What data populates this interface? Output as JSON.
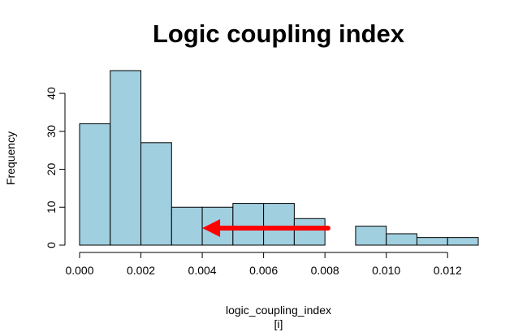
{
  "chart_data": {
    "type": "bar",
    "subtype": "histogram",
    "title": "Logic coupling index",
    "xlabel": "logic_coupling_index",
    "xlabel_sub": "[i]",
    "ylabel": "Frequency",
    "bin_edges": [
      0.0,
      0.001,
      0.002,
      0.003,
      0.004,
      0.005,
      0.006,
      0.007,
      0.008,
      0.009,
      0.01,
      0.011,
      0.012,
      0.013
    ],
    "counts": [
      32,
      46,
      27,
      10,
      10,
      11,
      11,
      7,
      0,
      5,
      3,
      2,
      2
    ],
    "xlim": [
      0.0,
      0.013
    ],
    "ylim": [
      0,
      46
    ],
    "x_ticks": [
      0.0,
      0.002,
      0.004,
      0.006,
      0.008,
      0.01,
      0.012
    ],
    "x_tick_labels": [
      "0.000",
      "0.002",
      "0.004",
      "0.006",
      "0.008",
      "0.010",
      "0.012"
    ],
    "y_ticks": [
      0,
      10,
      20,
      30,
      40
    ],
    "y_tick_labels": [
      "0",
      "10",
      "20",
      "30",
      "40"
    ],
    "grid": false,
    "bar_color": "#a0cfe0",
    "annotation": {
      "type": "arrow",
      "color": "#ff0000",
      "from": {
        "x": 0.0081,
        "y": 4.5
      },
      "to": {
        "x": 0.004,
        "y": 4.5
      }
    }
  }
}
